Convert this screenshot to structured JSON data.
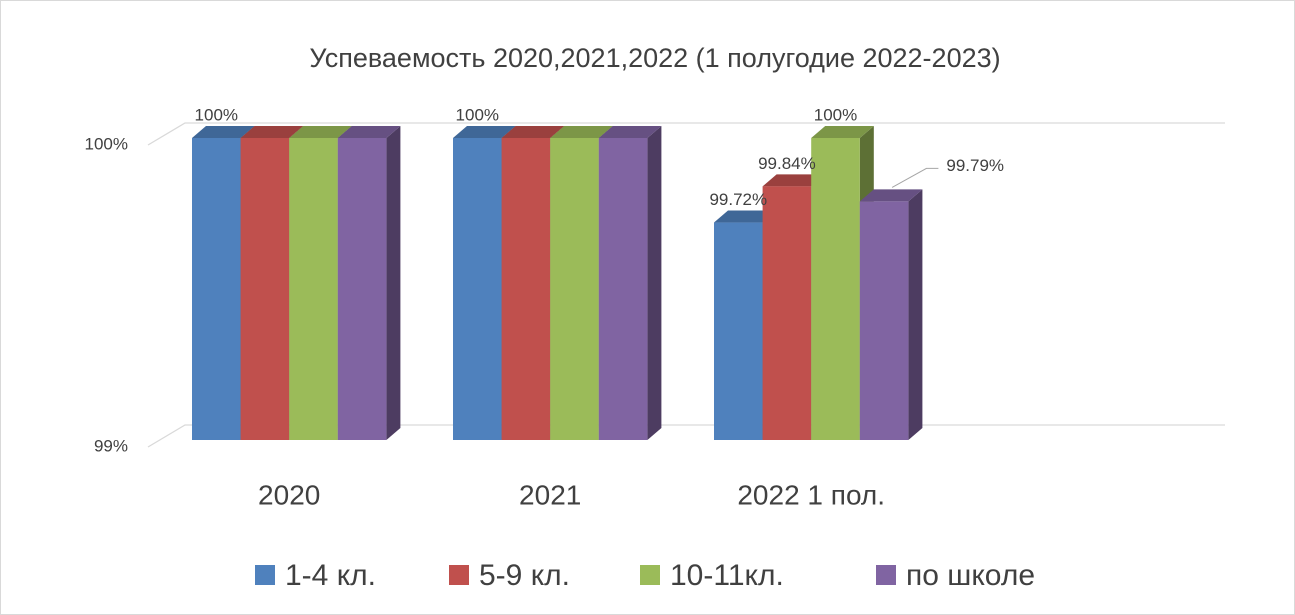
{
  "chart_data": {
    "type": "bar3d",
    "title": "Успеваемость 2020,2021,2022 (1 полугодие 2022-2023)",
    "categories": [
      "2020",
      "2021",
      "2022 1 пол."
    ],
    "series": [
      {
        "name": "1-4 кл.",
        "color": "#4f81bd",
        "values": [
          100,
          100,
          99.72
        ],
        "value_labels": [
          "100%",
          "100%",
          "99.72%"
        ]
      },
      {
        "name": "5-9 кл.",
        "color": "#c0504d",
        "values": [
          100,
          100,
          99.84
        ],
        "value_labels": [
          null,
          null,
          "99.84%"
        ]
      },
      {
        "name": "10-11кл.",
        "color": "#9bbb59",
        "values": [
          100,
          100,
          100
        ],
        "value_labels": [
          null,
          null,
          "100%"
        ]
      },
      {
        "name": "по школе",
        "color": "#8064a2",
        "values": [
          100,
          100,
          99.79
        ],
        "value_labels": [
          null,
          null,
          "99.79%"
        ]
      }
    ],
    "ylim": [
      99,
      100
    ],
    "yticks": [
      {
        "value": 99,
        "label": "99%"
      },
      {
        "value": 100,
        "label": "100%"
      }
    ],
    "grid": true,
    "legend": "bottom"
  }
}
